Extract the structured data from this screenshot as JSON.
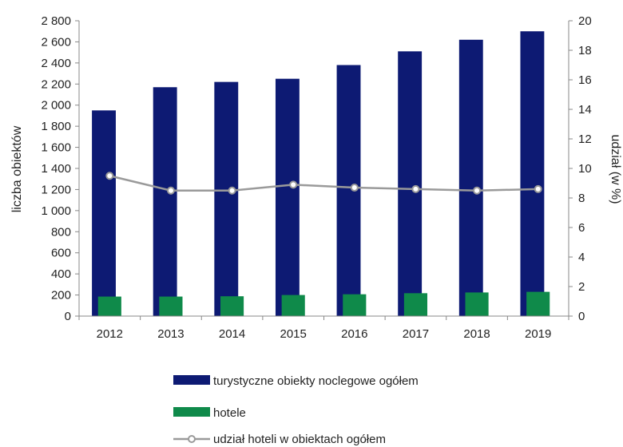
{
  "chart_data": {
    "type": "bar",
    "categories": [
      "2012",
      "2013",
      "2014",
      "2015",
      "2016",
      "2017",
      "2018",
      "2019"
    ],
    "series": [
      {
        "name": "turystyczne obiekty noclegowe ogółem",
        "type": "bar",
        "axis": "left",
        "color": "#0d1a73",
        "values": [
          1950,
          2170,
          2220,
          2250,
          2380,
          2510,
          2620,
          2700
        ]
      },
      {
        "name": "hotele",
        "type": "bar",
        "axis": "left",
        "color": "#0f8a4a",
        "values": [
          185,
          185,
          188,
          200,
          207,
          217,
          224,
          230
        ]
      },
      {
        "name": "udział hoteli w obiektach ogółem",
        "type": "line",
        "axis": "right",
        "color": "#9a9a9a",
        "values": [
          9.5,
          8.5,
          8.5,
          8.9,
          8.7,
          8.6,
          8.5,
          8.6
        ]
      }
    ],
    "ylabel": "liczba obiektów",
    "y2label": "udział (w %)",
    "ylim": [
      0,
      2800
    ],
    "y2lim": [
      0,
      20
    ],
    "yticks": [
      "0",
      "200",
      "400",
      "600",
      "800",
      "1 000",
      "1 200",
      "1 400",
      "1 600",
      "1 800",
      "2 000",
      "2 200",
      "2 400",
      "2 600",
      "2 800"
    ],
    "y2ticks": [
      "0",
      "2",
      "4",
      "6",
      "8",
      "10",
      "12",
      "14",
      "16",
      "18",
      "20"
    ],
    "grid": false,
    "legend_position": "bottom"
  }
}
